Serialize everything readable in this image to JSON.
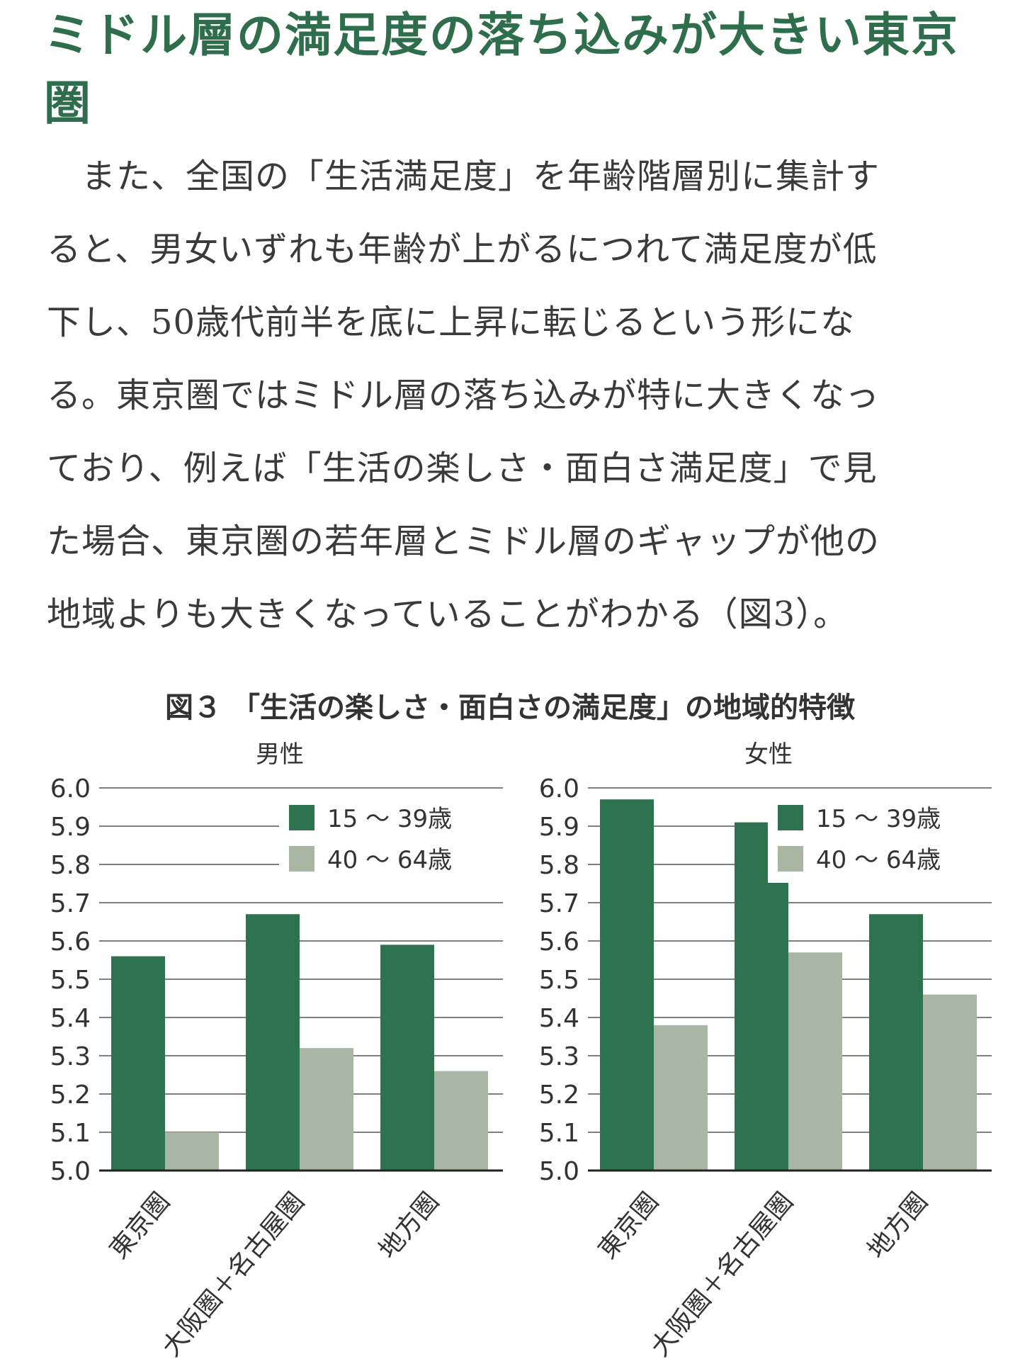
{
  "heading": "ミドル層の満足度の落ち込みが大きい東京圏",
  "paragraph_lines": [
    "　また、全国の「生活満足度」を年齢階層別に集計す",
    "ると、男女いずれも年齢が上がるにつれて満足度が低",
    "下し、50歳代前半を底に上昇に転じるという形にな",
    "る。東京圏ではミドル層の落ち込みが特に大きくなっ",
    "ており、例えば「生活の楽しさ・面白さ満足度」で見",
    "た場合、東京圏の若年層とミドル層のギャップが他の",
    "地域よりも大きくなっていることがわかる（図3）。"
  ],
  "figure_title": "図３ 「生活の楽しさ・面白さの満足度」の地域的特徴",
  "colors": {
    "young": "#2e7350",
    "middle": "#a9b6a4",
    "heading": "#2f6e4c"
  },
  "chart_data": [
    {
      "type": "bar",
      "title": "男性",
      "categories": [
        "東京圏",
        "大阪圏＋名古屋圏",
        "地方圏"
      ],
      "series": [
        {
          "name": "15 ～ 39歳",
          "values": [
            5.56,
            5.67,
            5.59
          ]
        },
        {
          "name": "40 ～ 64歳",
          "values": [
            5.1,
            5.32,
            5.26
          ]
        }
      ],
      "ylim": [
        5.0,
        6.0
      ],
      "yticks": [
        "5.0",
        "5.1",
        "5.2",
        "5.3",
        "5.4",
        "5.5",
        "5.6",
        "5.7",
        "5.8",
        "5.9",
        "6.0"
      ],
      "grid": true,
      "legend": "top-right"
    },
    {
      "type": "bar",
      "title": "女性",
      "categories": [
        "東京圏",
        "大阪圏＋名古屋圏",
        "地方圏"
      ],
      "series": [
        {
          "name": "15 ～ 39歳",
          "values": [
            5.97,
            5.91,
            5.67
          ]
        },
        {
          "name": "40 ～ 64歳",
          "values": [
            5.38,
            5.57,
            5.46
          ]
        }
      ],
      "ylim": [
        5.0,
        6.0
      ],
      "yticks": [
        "5.0",
        "5.1",
        "5.2",
        "5.3",
        "5.4",
        "5.5",
        "5.6",
        "5.7",
        "5.8",
        "5.9",
        "6.0"
      ],
      "grid": true,
      "legend": "top-right"
    }
  ]
}
